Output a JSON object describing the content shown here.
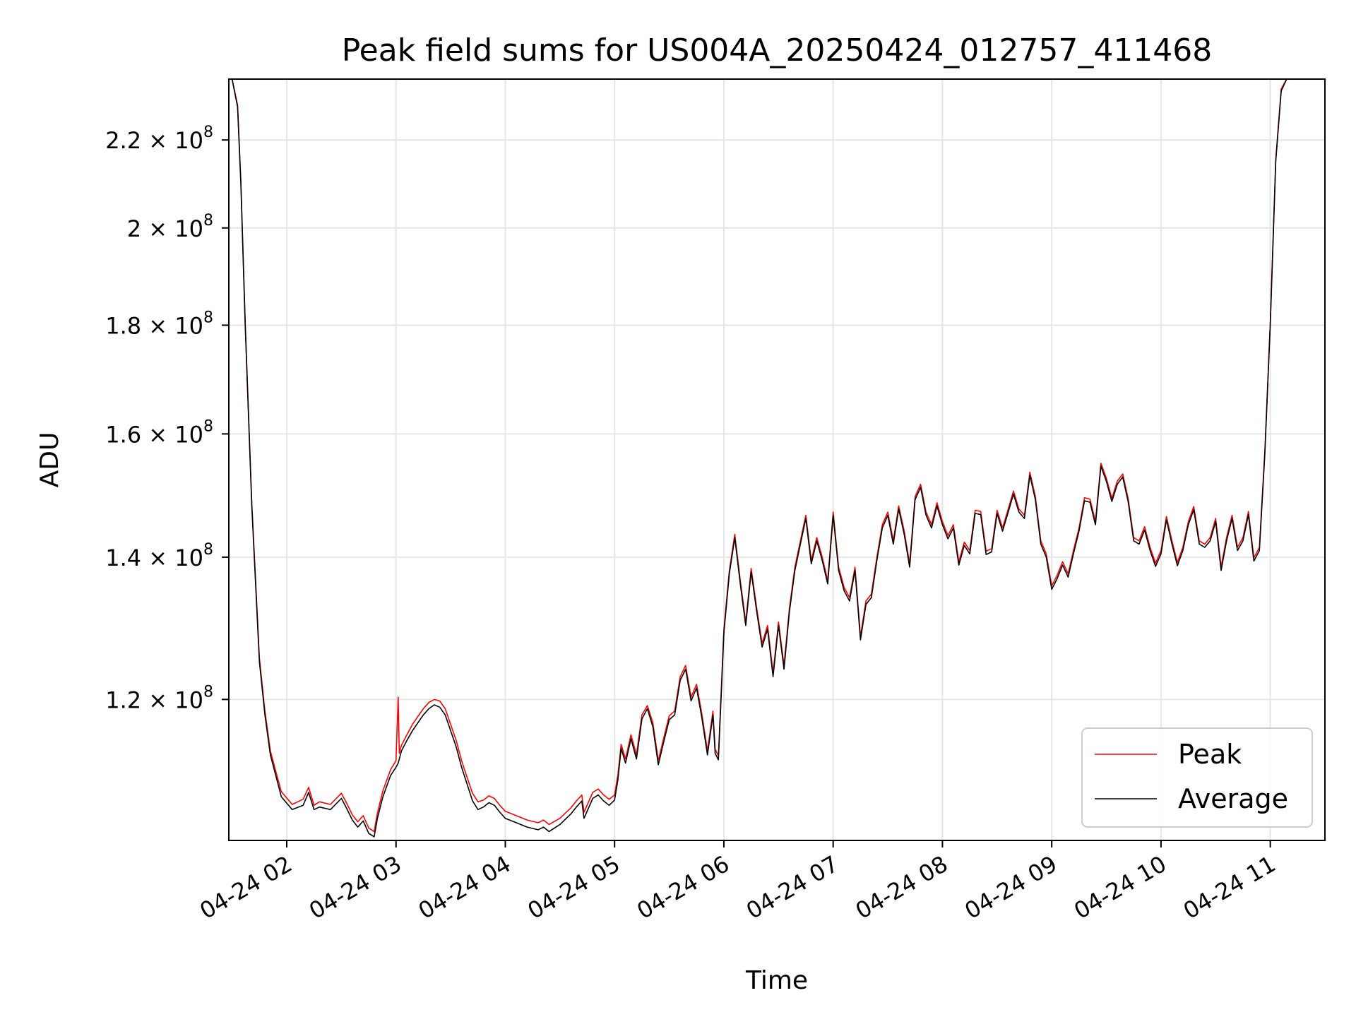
{
  "chart_data": {
    "type": "line",
    "title": "Peak field sums for US004A_20250424_012757_411468",
    "xlabel": "Time",
    "ylabel": "ADU",
    "y_scale": "log",
    "grid": true,
    "legend_position": "lower-right",
    "x_tick_labels": [
      "04-24 02",
      "04-24 03",
      "04-24 04",
      "04-24 05",
      "04-24 06",
      "04-24 07",
      "04-24 08",
      "04-24 09",
      "04-24 10",
      "04-24 11"
    ],
    "x_ticks_hours": [
      2,
      3,
      4,
      5,
      6,
      7,
      8,
      9,
      10,
      11
    ],
    "xlim_hours": [
      1.47,
      11.5
    ],
    "y_ticks": [
      {
        "value": 120000000,
        "mantissa": "1.2",
        "exponent": "8"
      },
      {
        "value": 140000000,
        "mantissa": "1.4",
        "exponent": "8"
      },
      {
        "value": 160000000,
        "mantissa": "1.6",
        "exponent": "8"
      },
      {
        "value": 180000000,
        "mantissa": "1.8",
        "exponent": "8"
      },
      {
        "value": 200000000,
        "mantissa": "2",
        "exponent": "8"
      },
      {
        "value": 220000000,
        "mantissa": "2.2",
        "exponent": "8"
      }
    ],
    "ylim": [
      103000000,
      235000000
    ],
    "series": [
      {
        "name": "Peak",
        "color": "#ff0000"
      },
      {
        "name": "Average",
        "color": "#000000"
      }
    ],
    "x_hours": [
      1.47,
      1.5,
      1.55,
      1.58,
      1.62,
      1.68,
      1.75,
      1.8,
      1.85,
      1.9,
      1.95,
      2.05,
      2.15,
      2.2,
      2.25,
      2.3,
      2.4,
      2.5,
      2.55,
      2.6,
      2.65,
      2.7,
      2.75,
      2.8,
      2.83,
      2.88,
      2.95,
      3.0,
      3.02,
      3.03,
      3.04,
      3.05,
      3.1,
      3.15,
      3.2,
      3.25,
      3.3,
      3.35,
      3.4,
      3.45,
      3.5,
      3.55,
      3.6,
      3.65,
      3.7,
      3.75,
      3.8,
      3.85,
      3.9,
      3.95,
      4.0,
      4.1,
      4.2,
      4.3,
      4.35,
      4.4,
      4.5,
      4.6,
      4.65,
      4.7,
      4.72,
      4.8,
      4.85,
      4.9,
      4.95,
      5.0,
      5.03,
      5.06,
      5.1,
      5.15,
      5.2,
      5.25,
      5.3,
      5.35,
      5.4,
      5.45,
      5.5,
      5.55,
      5.6,
      5.65,
      5.7,
      5.75,
      5.8,
      5.85,
      5.9,
      5.92,
      5.95,
      6.0,
      6.05,
      6.1,
      6.15,
      6.2,
      6.25,
      6.3,
      6.35,
      6.4,
      6.45,
      6.5,
      6.55,
      6.6,
      6.65,
      6.7,
      6.75,
      6.8,
      6.85,
      6.9,
      6.95,
      7.0,
      7.05,
      7.1,
      7.15,
      7.2,
      7.25,
      7.3,
      7.35,
      7.4,
      7.45,
      7.5,
      7.55,
      7.6,
      7.65,
      7.7,
      7.75,
      7.8,
      7.85,
      7.9,
      7.95,
      8.0,
      8.05,
      8.1,
      8.15,
      8.2,
      8.25,
      8.3,
      8.35,
      8.4,
      8.45,
      8.5,
      8.55,
      8.6,
      8.65,
      8.7,
      8.75,
      8.8,
      8.85,
      8.9,
      8.95,
      9.0,
      9.05,
      9.1,
      9.15,
      9.2,
      9.25,
      9.3,
      9.35,
      9.4,
      9.45,
      9.5,
      9.55,
      9.6,
      9.65,
      9.7,
      9.75,
      9.8,
      9.85,
      9.9,
      9.95,
      10.0,
      10.05,
      10.1,
      10.15,
      10.2,
      10.25,
      10.3,
      10.35,
      10.4,
      10.45,
      10.5,
      10.55,
      10.6,
      10.65,
      10.7,
      10.75,
      10.8,
      10.85,
      10.9,
      10.95,
      11.0,
      11.05,
      11.1,
      11.15,
      11.2,
      11.25,
      11.3,
      11.35,
      11.4,
      11.45,
      11.5
    ],
    "average_values": [
      235000000,
      235000000,
      228000000,
      210000000,
      180000000,
      148000000,
      125000000,
      118000000,
      113000000,
      110500000,
      108000000,
      106500000,
      107000000,
      108500000,
      106500000,
      106800000,
      106500000,
      107800000,
      106600000,
      105300000,
      104500000,
      105200000,
      103800000,
      103400000,
      105500000,
      108000000,
      110500000,
      111500000,
      112000000,
      112500000,
      113000000,
      113500000,
      114800000,
      116000000,
      117000000,
      118000000,
      118800000,
      119300000,
      119000000,
      118000000,
      116000000,
      114000000,
      111500000,
      109500000,
      107500000,
      106500000,
      106800000,
      107300000,
      107000000,
      106200000,
      105500000,
      105000000,
      104500000,
      104200000,
      104500000,
      104000000,
      104800000,
      106000000,
      106800000,
      107500000,
      105500000,
      107800000,
      108200000,
      107500000,
      107000000,
      107600000,
      110000000,
      113800000,
      112000000,
      115000000,
      112500000,
      117500000,
      118800000,
      116500000,
      111800000,
      114600000,
      117400000,
      118000000,
      122500000,
      124000000,
      119800000,
      121500000,
      117500000,
      113000000,
      118000000,
      113200000,
      112400000,
      129000000,
      137500000,
      143000000,
      136000000,
      130000000,
      137800000,
      132000000,
      127000000,
      129500000,
      123000000,
      130000000,
      124000000,
      132000000,
      138000000,
      142000000,
      146000000,
      139000000,
      142500000,
      139500000,
      136000000,
      146500000,
      138000000,
      135000000,
      133500000,
      138000000,
      128000000,
      133000000,
      134000000,
      139500000,
      144500000,
      146500000,
      142000000,
      147500000,
      143500000,
      138500000,
      149000000,
      151000000,
      146500000,
      144500000,
      148000000,
      145000000,
      142800000,
      144500000,
      138800000,
      141800000,
      140500000,
      146800000,
      146600000,
      140400000,
      140800000,
      146800000,
      144000000,
      146900000,
      149900000,
      147000000,
      146000000,
      153000000,
      149000000,
      142000000,
      140000000,
      135200000,
      136800000,
      138800000,
      137000000,
      140600000,
      144000000,
      148800000,
      148600000,
      145000000,
      154500000,
      152000000,
      148700000,
      151500000,
      152700000,
      148600000,
      142500000,
      142000000,
      144200000,
      141000000,
      138600000,
      140500000,
      145800000,
      142000000,
      138700000,
      141000000,
      145000000,
      147400000,
      142000000,
      141500000,
      142500000,
      145500000,
      138000000,
      142500000,
      146000000,
      141000000,
      142500000,
      146600000,
      139400000,
      141000000,
      156500000,
      180000000,
      215000000,
      232000000,
      235000000
    ],
    "peak_values": [
      235000000,
      235000000,
      228500000,
      210500000,
      180500000,
      148500000,
      125500000,
      118500000,
      113500000,
      111000000,
      108600000,
      107100000,
      107700000,
      109100000,
      107000000,
      107400000,
      107100000,
      108400000,
      107200000,
      105900000,
      105100000,
      105800000,
      104400000,
      104000000,
      106100000,
      108700000,
      111200000,
      112300000,
      120300000,
      113200000,
      113700000,
      114200000,
      115500000,
      116800000,
      117800000,
      118800000,
      119600000,
      120000000,
      119800000,
      118800000,
      116800000,
      114800000,
      112300000,
      110300000,
      108400000,
      107400000,
      107600000,
      108100000,
      107800000,
      107000000,
      106300000,
      105800000,
      105300000,
      105000000,
      105300000,
      104800000,
      105500000,
      106700000,
      107500000,
      108200000,
      106200000,
      108500000,
      108900000,
      108200000,
      107700000,
      108200000,
      110600000,
      114300000,
      112500000,
      115500000,
      113000000,
      118000000,
      119200000,
      117000000,
      112300000,
      115100000,
      117900000,
      118500000,
      123000000,
      124500000,
      120300000,
      122000000,
      118000000,
      113500000,
      118500000,
      113700000,
      112900000,
      129500000,
      138000000,
      143500000,
      136500000,
      130500000,
      138300000,
      132500000,
      127500000,
      130000000,
      123500000,
      130500000,
      124500000,
      132500000,
      138500000,
      142500000,
      146500000,
      139500000,
      143000000,
      140000000,
      136500000,
      147000000,
      138500000,
      135500000,
      134000000,
      138500000,
      128500000,
      133500000,
      134500000,
      140000000,
      145000000,
      147000000,
      142500000,
      148000000,
      144000000,
      139000000,
      149500000,
      151500000,
      147000000,
      145000000,
      148500000,
      145500000,
      143300000,
      145000000,
      139300000,
      142300000,
      141000000,
      147300000,
      147100000,
      140900000,
      141300000,
      147300000,
      144500000,
      147400000,
      150400000,
      147500000,
      146500000,
      153500000,
      149500000,
      142500000,
      140500000,
      135700000,
      137300000,
      139300000,
      137500000,
      141100000,
      144500000,
      149300000,
      149100000,
      145500000,
      155000000,
      152500000,
      149200000,
      152000000,
      153200000,
      149100000,
      143000000,
      142500000,
      144700000,
      141500000,
      139100000,
      141000000,
      146300000,
      142500000,
      139200000,
      141500000,
      145500000,
      147900000,
      142500000,
      142000000,
      143000000,
      146000000,
      138500000,
      143000000,
      146500000,
      141500000,
      143000000,
      147100000,
      139900000,
      141500000,
      157000000,
      180500000,
      215500000,
      232500000,
      235000000
    ]
  }
}
